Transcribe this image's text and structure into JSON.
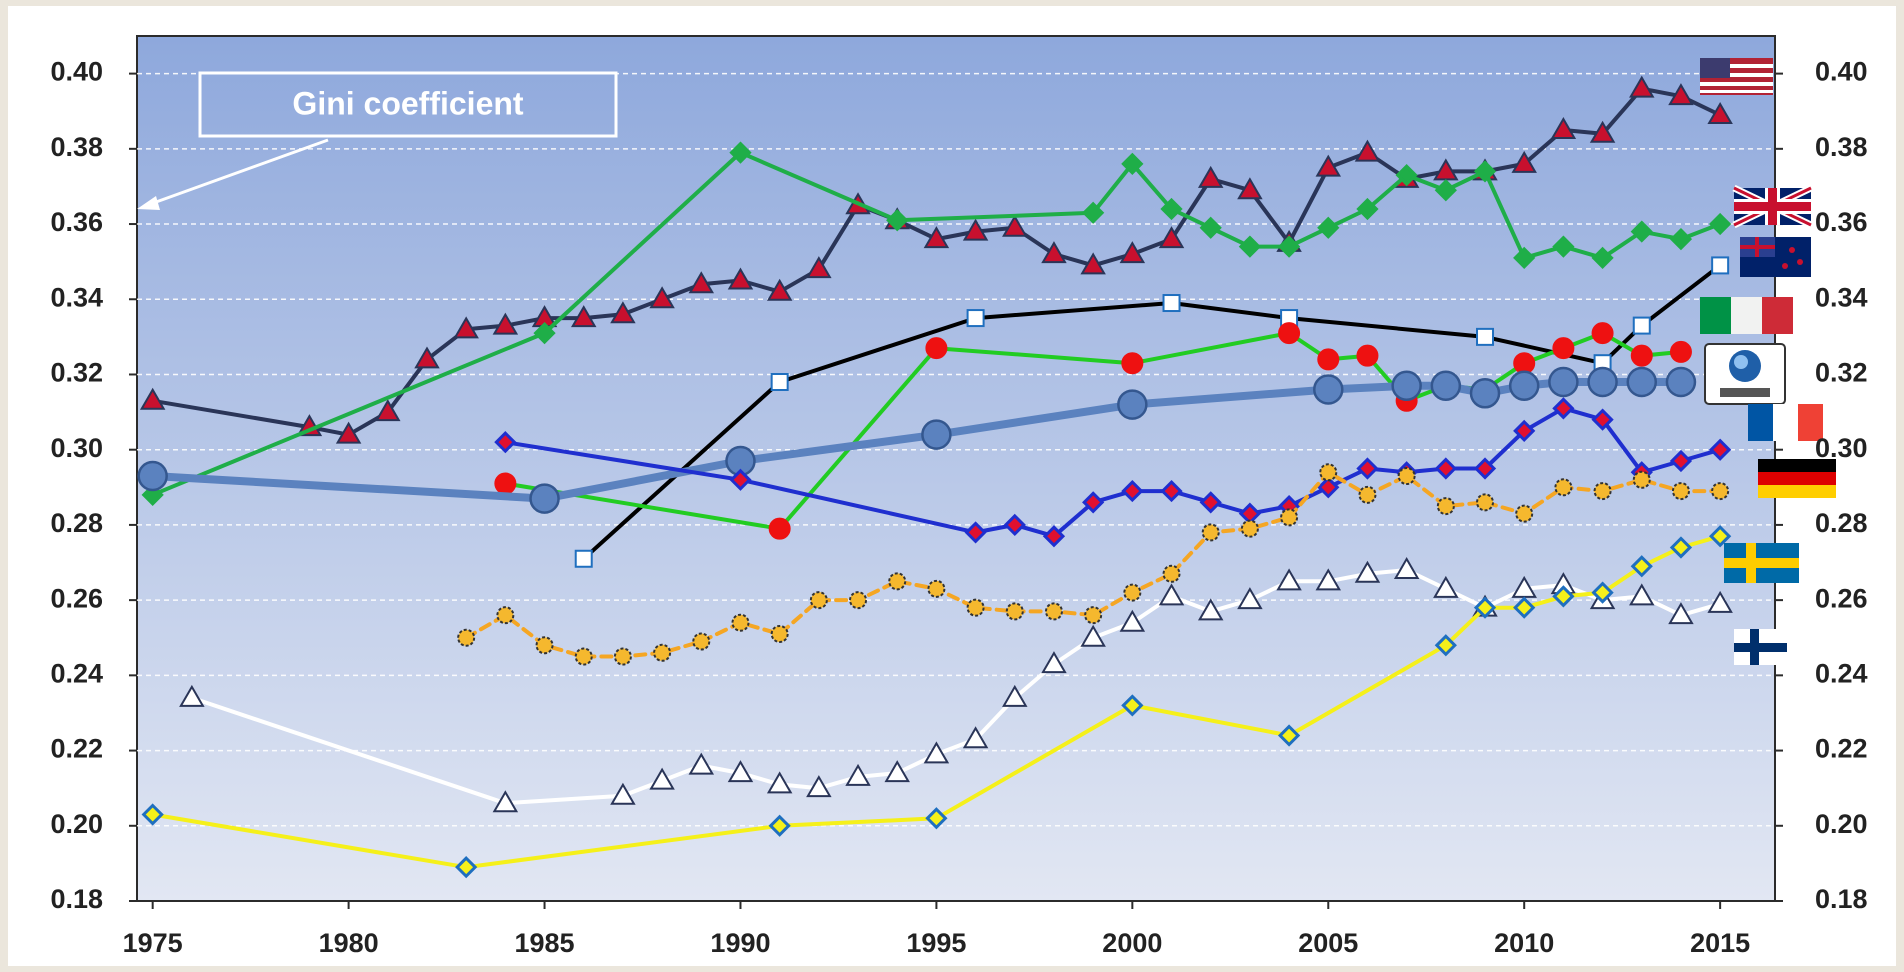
{
  "chart_data": {
    "type": "line",
    "annotation": "Gini coefficient",
    "xlim": [
      1974.6,
      2016.4
    ],
    "xticks": [
      1975,
      1980,
      1985,
      1990,
      1995,
      2000,
      2005,
      2010,
      2015
    ],
    "ylim": [
      0.18,
      0.41
    ],
    "yticks": [
      0.18,
      {
        "value": 0.2,
        "label": "0.20"
      },
      0.22,
      0.24,
      0.26,
      0.28,
      {
        "value": 0.3,
        "label": "0.30"
      },
      0.32,
      0.34,
      0.36,
      0.38,
      {
        "value": 0.4,
        "label": "0.40"
      }
    ],
    "y2lim": [
      0.18,
      0.41
    ],
    "y2ticks": [
      0.18,
      {
        "value": 0.2,
        "label": "0.20"
      },
      0.22,
      0.24,
      0.26,
      0.28,
      {
        "value": 0.3,
        "label": "0.30"
      },
      0.32,
      0.34,
      0.36,
      0.38,
      {
        "value": 0.4,
        "label": "0.40"
      }
    ],
    "grid": true,
    "series": [
      {
        "color": "#2a3558",
        "marker": "triangle",
        "marker_fill": "#c8102e",
        "marker_stroke": "#2a3558",
        "x": [
          1975,
          1979,
          1980,
          1981,
          1982,
          1983,
          1984,
          1985,
          1986,
          1987,
          1988,
          1989,
          1990,
          1991,
          1992,
          1993,
          1994,
          1995,
          1996,
          1997,
          1998,
          1999,
          2000,
          2001,
          2002,
          2003,
          2004,
          2005,
          2006,
          2007,
          2008,
          2009,
          2010,
          2011,
          2012,
          2013,
          2014,
          2015
        ],
        "values": [
          0.313,
          0.306,
          0.304,
          0.31,
          0.324,
          0.332,
          0.333,
          0.335,
          0.335,
          0.336,
          0.34,
          0.344,
          0.345,
          0.342,
          0.348,
          0.365,
          0.361,
          0.356,
          0.358,
          0.359,
          0.352,
          0.349,
          0.352,
          0.356,
          0.372,
          0.369,
          0.355,
          0.375,
          0.379,
          0.372,
          0.374,
          0.374,
          0.376,
          0.385,
          0.384,
          0.396,
          0.394,
          0.389
        ]
      },
      {
        "color": "#1fae48",
        "marker": "diamond",
        "marker_fill": "#1fae48",
        "marker_stroke": "#1fae48",
        "x": [
          1975,
          1985,
          1990,
          1994,
          1999,
          2000,
          2001,
          2002,
          2003,
          2004,
          2005,
          2006,
          2007,
          2008,
          2009,
          2010,
          2011,
          2012,
          2013,
          2014,
          2015
        ],
        "values": [
          0.288,
          0.331,
          0.379,
          0.361,
          0.363,
          0.376,
          0.364,
          0.359,
          0.354,
          0.354,
          0.359,
          0.364,
          0.373,
          0.369,
          0.374,
          0.351,
          0.354,
          0.351,
          0.358,
          0.356,
          0.36
        ]
      },
      {
        "color": "#000000",
        "marker": "square",
        "marker_fill": "#ffffff",
        "marker_stroke": "#1f6fbf",
        "x": [
          1986,
          1991,
          1996,
          2001,
          2004,
          2009,
          2012,
          2013,
          2015
        ],
        "values": [
          0.271,
          0.318,
          0.335,
          0.339,
          0.335,
          0.33,
          0.323,
          0.333,
          0.349
        ]
      },
      {
        "color": "#22cc22",
        "marker": "circle",
        "marker_fill": "#ee1111",
        "marker_stroke": "#ee1111",
        "x": [
          1984,
          1991,
          1995,
          2000,
          2004,
          2005,
          2006,
          2007,
          2008,
          2009,
          2010,
          2011,
          2012,
          2013,
          2014
        ],
        "values": [
          0.291,
          0.279,
          0.327,
          0.323,
          0.331,
          0.324,
          0.325,
          0.313,
          0.317,
          0.316,
          0.323,
          0.327,
          0.331,
          0.325,
          0.326
        ]
      },
      {
        "color": "#5b82bf",
        "marker": "big-circle",
        "marker_fill": "#5b82bf",
        "marker_stroke": "#34578f",
        "x": [
          1975,
          1985,
          1990,
          1995,
          2000,
          2005,
          2007,
          2008,
          2009,
          2010,
          2011,
          2012,
          2013,
          2014
        ],
        "values": [
          0.293,
          0.287,
          0.297,
          0.304,
          0.312,
          0.316,
          0.317,
          0.317,
          0.315,
          0.317,
          0.318,
          0.318,
          0.318,
          0.318
        ]
      },
      {
        "color": "#1f2fcf",
        "marker": "diamond",
        "marker_fill": "#e01030",
        "marker_stroke": "#1f2fcf",
        "x": [
          1984,
          1990,
          1996,
          1997,
          1998,
          1999,
          2000,
          2001,
          2002,
          2003,
          2004,
          2005,
          2006,
          2007,
          2008,
          2009,
          2010,
          2011,
          2012,
          2013,
          2014,
          2015
        ],
        "values": [
          0.302,
          0.292,
          0.278,
          0.28,
          0.277,
          0.286,
          0.289,
          0.289,
          0.286,
          0.283,
          0.285,
          0.29,
          0.295,
          0.294,
          0.295,
          0.295,
          0.305,
          0.311,
          0.308,
          0.294,
          0.297,
          0.3
        ]
      },
      {
        "color": "#f5a623",
        "line_style": "dashed",
        "marker": "circle",
        "marker_fill": "#f5b82e",
        "marker_stroke": "#333333",
        "x": [
          1983,
          1984,
          1985,
          1986,
          1987,
          1988,
          1989,
          1990,
          1991,
          1992,
          1993,
          1994,
          1995,
          1996,
          1997,
          1998,
          1999,
          2000,
          2001,
          2002,
          2003,
          2004,
          2005,
          2006,
          2007,
          2008,
          2009,
          2010,
          2011,
          2012,
          2013,
          2014,
          2015
        ],
        "values": [
          0.25,
          0.256,
          0.248,
          0.245,
          0.245,
          0.246,
          0.249,
          0.254,
          0.251,
          0.26,
          0.26,
          0.265,
          0.263,
          0.258,
          0.257,
          0.257,
          0.256,
          0.262,
          0.267,
          0.278,
          0.279,
          0.282,
          0.294,
          0.288,
          0.293,
          0.285,
          0.286,
          0.283,
          0.29,
          0.289,
          0.292,
          0.289,
          0.289
        ]
      },
      {
        "color": "#ffffff",
        "marker": "triangle",
        "marker_fill": "#ffffff",
        "marker_stroke": "#2a3558",
        "x": [
          1976,
          1984,
          1987,
          1988,
          1989,
          1990,
          1991,
          1992,
          1993,
          1994,
          1995,
          1996,
          1997,
          1998,
          1999,
          2000,
          2001,
          2002,
          2003,
          2004,
          2005,
          2006,
          2007,
          2008,
          2009,
          2010,
          2011,
          2012,
          2013,
          2014,
          2015
        ],
        "values": [
          0.234,
          0.206,
          0.208,
          0.212,
          0.216,
          0.214,
          0.211,
          0.21,
          0.213,
          0.214,
          0.219,
          0.223,
          0.234,
          0.243,
          0.25,
          0.254,
          0.261,
          0.257,
          0.26,
          0.265,
          0.265,
          0.267,
          0.268,
          0.263,
          0.258,
          0.263,
          0.264,
          0.26,
          0.261,
          0.256,
          0.259
        ]
      },
      {
        "color": "#f5f01a",
        "marker": "diamond",
        "marker_fill": "#f5f01a",
        "marker_stroke": "#1f6fbf",
        "x": [
          1975,
          1983,
          1991,
          1995,
          2000,
          2004,
          2008,
          2009,
          2010,
          2011,
          2012,
          2013,
          2014,
          2015
        ],
        "values": [
          0.203,
          0.189,
          0.2,
          0.202,
          0.232,
          0.224,
          0.248,
          0.258,
          0.258,
          0.261,
          0.262,
          0.269,
          0.274,
          0.277
        ]
      }
    ]
  }
}
